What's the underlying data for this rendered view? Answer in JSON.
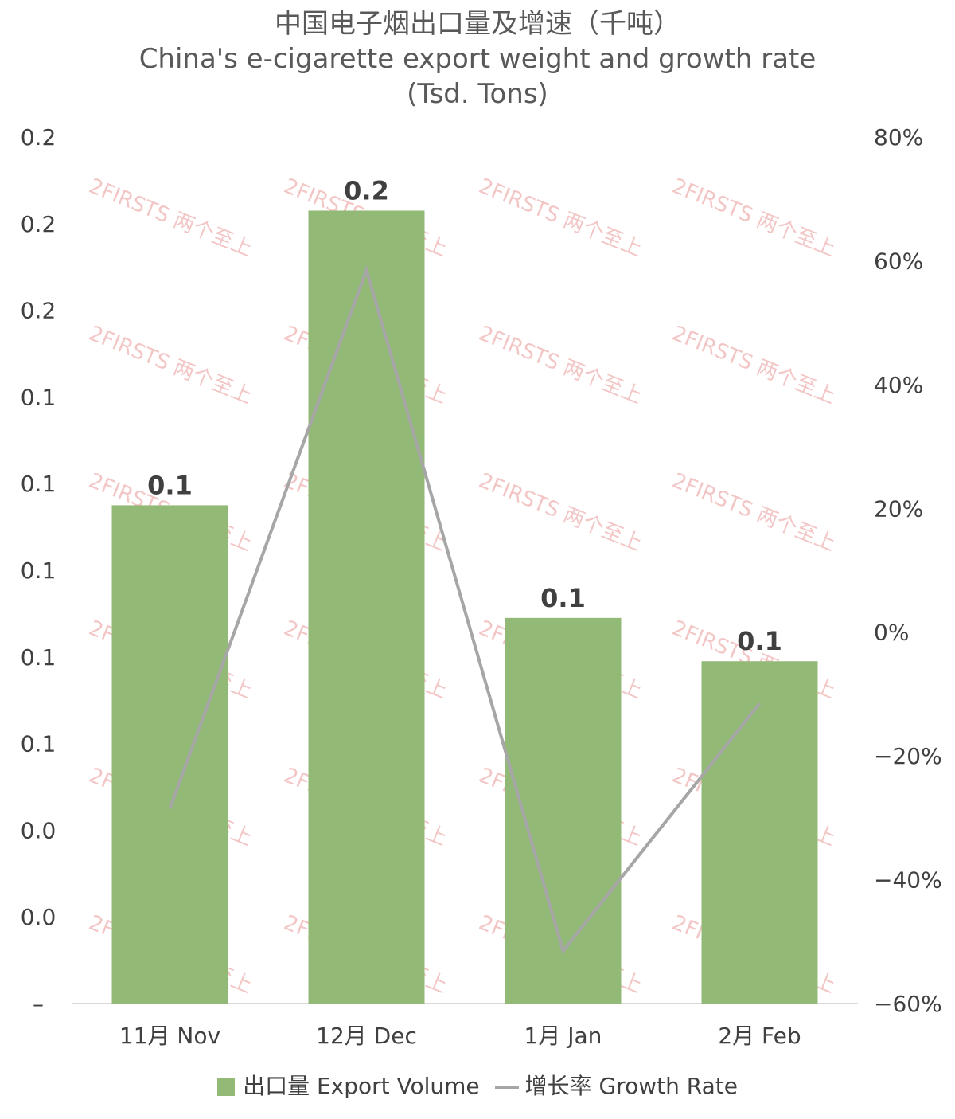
{
  "titles": {
    "line1": "中国电子烟出口量及增速（千吨）",
    "line2": "China's e-cigarette export weight and growth rate",
    "line3": "(Tsd. Tons)"
  },
  "watermark_text": "2FIRSTS 两个至上",
  "chart_data": {
    "type": "bar",
    "categories": [
      "11月 Nov",
      "12月 Dec",
      "1月 Jan",
      "2月 Feb"
    ],
    "series": [
      {
        "name": "出口量 Export Volume",
        "type": "bar",
        "axis": "left",
        "values": [
          0.115,
          0.183,
          0.089,
          0.079
        ],
        "data_labels": [
          "0.1",
          "0.2",
          "0.1",
          "0.1"
        ],
        "color": "#93b977"
      },
      {
        "name": "增长率 Growth Rate",
        "type": "line",
        "axis": "right",
        "values": [
          -28.5,
          58.5,
          -51.5,
          -11.5
        ],
        "color": "#a6a6a6"
      }
    ],
    "y_left": {
      "ylim": [
        0,
        0.2
      ],
      "tick_labels": [
        "–",
        "0.0",
        "0.0",
        "0.1",
        "0.1",
        "0.1",
        "0.1",
        "0.1",
        "0.2",
        "0.2",
        "0.2"
      ]
    },
    "y_right": {
      "ylim": [
        -60,
        80
      ],
      "unit": "%",
      "tick_labels": [
        "−60%",
        "−40%",
        "−20%",
        "0%",
        "20%",
        "40%",
        "60%",
        "80%"
      ]
    },
    "legend": {
      "position": "bottom",
      "items": [
        "出口量 Export Volume",
        "增长率 Growth Rate"
      ]
    },
    "grid": false
  }
}
